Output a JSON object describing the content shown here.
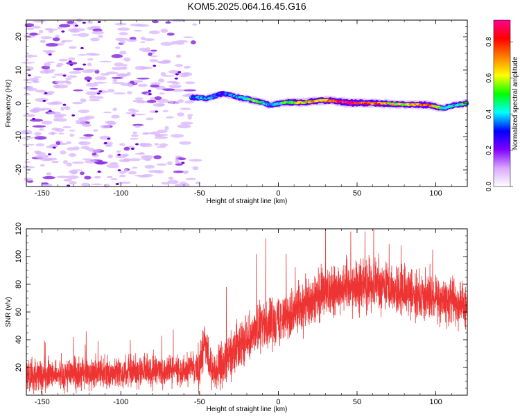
{
  "chart_data": [
    {
      "type": "heatmap",
      "title": "KOM5.2025.064.16.45.G16",
      "xlabel": "Height of straight line (km)",
      "ylabel": "Frequency (Hz)",
      "xlim": [
        -160,
        120
      ],
      "ylim": [
        -25,
        25
      ],
      "x_ticks": [
        -150,
        -100,
        -50,
        0,
        50,
        100
      ],
      "y_ticks": [
        -20,
        -10,
        0,
        10,
        20
      ],
      "colorbar": {
        "label": "Normalized spectral amplitude",
        "range": [
          0,
          0.92
        ],
        "ticks": [
          0.0,
          0.2,
          0.4,
          0.6,
          0.8
        ],
        "colormap": [
          "#ffffff",
          "#d9a8ff",
          "#8000ff",
          "#0000ff",
          "#00ffff",
          "#00ff00",
          "#ffff00",
          "#ff8000",
          "#ff0000",
          "#ff0090"
        ]
      },
      "noise_region_x": [
        -160,
        -55
      ],
      "ridge": {
        "description_points": [
          {
            "x": -55,
            "f": 1.8,
            "amp": 0.35
          },
          {
            "x": -45,
            "f": 1.5,
            "amp": 0.4
          },
          {
            "x": -35,
            "f": 3.0,
            "amp": 0.3
          },
          {
            "x": -25,
            "f": 1.8,
            "amp": 0.4
          },
          {
            "x": -15,
            "f": 0.8,
            "amp": 0.55
          },
          {
            "x": -5,
            "f": -0.5,
            "amp": 0.35
          },
          {
            "x": 5,
            "f": 0.3,
            "amp": 0.55
          },
          {
            "x": 15,
            "f": 0.2,
            "amp": 0.65
          },
          {
            "x": 25,
            "f": 0.8,
            "amp": 0.7
          },
          {
            "x": 35,
            "f": 0.8,
            "amp": 0.7
          },
          {
            "x": 45,
            "f": 0.1,
            "amp": 0.92
          },
          {
            "x": 55,
            "f": 0.1,
            "amp": 0.8
          },
          {
            "x": 65,
            "f": 0.0,
            "amp": 0.75
          },
          {
            "x": 75,
            "f": -0.3,
            "amp": 0.6
          },
          {
            "x": 85,
            "f": -0.4,
            "amp": 0.65
          },
          {
            "x": 95,
            "f": -0.5,
            "amp": 0.8
          },
          {
            "x": 105,
            "f": -1.5,
            "amp": 0.45
          },
          {
            "x": 112,
            "f": -0.5,
            "amp": 0.4
          },
          {
            "x": 120,
            "f": 0.0,
            "amp": 0.55
          }
        ]
      },
      "grid": false
    },
    {
      "type": "line",
      "xlabel": "Height of straight line (km)",
      "ylabel": "SNR (v/v)",
      "xlim": [
        -160,
        120
      ],
      "ylim": [
        0,
        120
      ],
      "x_ticks": [
        -150,
        -100,
        -50,
        0,
        50,
        100
      ],
      "y_ticks": [
        20,
        40,
        60,
        80,
        100,
        120
      ],
      "color": "#ee3333",
      "trend": {
        "x": [
          -160,
          -120,
          -80,
          -60,
          -50,
          -47,
          -44,
          -40,
          -35,
          -30,
          -20,
          -10,
          0,
          10,
          20,
          30,
          40,
          50,
          60,
          70,
          80,
          90,
          100,
          110,
          120
        ],
        "y": [
          14,
          16,
          17,
          18,
          20,
          40,
          22,
          17,
          22,
          30,
          42,
          50,
          56,
          60,
          66,
          75,
          78,
          80,
          80,
          77,
          74,
          72,
          70,
          68,
          65
        ]
      },
      "noise": {
        "x": [
          -160,
          -60,
          -50,
          -30,
          0,
          30,
          120
        ],
        "y": [
          8,
          8,
          10,
          11,
          12,
          13,
          11
        ]
      },
      "peaks": [
        {
          "x": -148,
          "y": 38
        },
        {
          "x": -130,
          "y": 42
        },
        {
          "x": -122,
          "y": 46
        },
        {
          "x": -94,
          "y": 40
        },
        {
          "x": -74,
          "y": 43
        },
        {
          "x": -33,
          "y": 78
        },
        {
          "x": -14,
          "y": 102
        },
        {
          "x": -8,
          "y": 113
        },
        {
          "x": 5,
          "y": 102
        },
        {
          "x": 30,
          "y": 120
        },
        {
          "x": 46,
          "y": 118
        },
        {
          "x": 55,
          "y": 118
        },
        {
          "x": 78,
          "y": 108
        },
        {
          "x": 98,
          "y": 105
        },
        {
          "x": 120,
          "y": 99
        }
      ],
      "grid": false
    }
  ]
}
